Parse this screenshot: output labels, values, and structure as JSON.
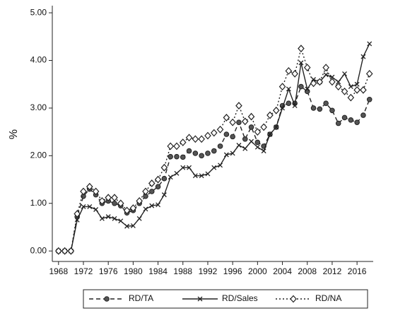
{
  "chart_data": {
    "type": "line",
    "y_label": "%",
    "x": [
      1968,
      1969,
      1970,
      1971,
      1972,
      1973,
      1974,
      1975,
      1976,
      1977,
      1978,
      1979,
      1980,
      1981,
      1982,
      1983,
      1984,
      1985,
      1986,
      1987,
      1988,
      1989,
      1990,
      1991,
      1992,
      1993,
      1994,
      1995,
      1996,
      1997,
      1998,
      1999,
      2000,
      2001,
      2002,
      2003,
      2004,
      2005,
      2006,
      2007,
      2008,
      2009,
      2010,
      2011,
      2012,
      2013,
      2014,
      2015,
      2016,
      2017,
      2018
    ],
    "series": [
      {
        "name": "RD/TA",
        "color": "#222222",
        "line_style": "dashed",
        "marker": "circle",
        "values": [
          0,
          0,
          0,
          0.72,
          1.15,
          1.3,
          1.18,
          1.0,
          1.05,
          1.0,
          0.95,
          0.8,
          0.85,
          1.0,
          1.15,
          1.25,
          1.35,
          1.52,
          1.98,
          1.98,
          1.97,
          2.1,
          2.05,
          2.0,
          2.05,
          2.1,
          2.2,
          2.45,
          2.4,
          2.7,
          2.35,
          2.6,
          2.28,
          2.2,
          2.45,
          2.6,
          3.05,
          3.1,
          3.1,
          3.45,
          3.35,
          3.0,
          2.98,
          3.1,
          2.95,
          2.68,
          2.8,
          2.75,
          2.7,
          2.85,
          3.18
        ]
      },
      {
        "name": "RD/Sales",
        "color": "#222222",
        "line_style": "solid",
        "marker": "x",
        "values": [
          0,
          0,
          0,
          0.65,
          0.93,
          0.93,
          0.87,
          0.68,
          0.72,
          0.68,
          0.63,
          0.52,
          0.53,
          0.68,
          0.88,
          0.95,
          0.97,
          1.18,
          1.55,
          1.63,
          1.75,
          1.75,
          1.58,
          1.58,
          1.62,
          1.75,
          1.8,
          2.02,
          2.05,
          2.22,
          2.15,
          2.3,
          2.18,
          2.1,
          2.45,
          2.6,
          3.0,
          3.4,
          3.05,
          3.95,
          3.4,
          3.6,
          3.55,
          3.7,
          3.65,
          3.55,
          3.72,
          3.45,
          3.5,
          4.08,
          4.35
        ]
      },
      {
        "name": "RD/NA",
        "color": "#222222",
        "line_style": "dotted",
        "marker": "diamond",
        "values": [
          0,
          0,
          0,
          0.78,
          1.25,
          1.35,
          1.25,
          1.05,
          1.12,
          1.12,
          1.0,
          0.85,
          0.9,
          1.05,
          1.25,
          1.42,
          1.5,
          1.75,
          2.2,
          2.2,
          2.28,
          2.38,
          2.35,
          2.35,
          2.42,
          2.48,
          2.55,
          2.8,
          2.7,
          3.05,
          2.72,
          2.82,
          2.5,
          2.6,
          2.85,
          2.95,
          3.45,
          3.78,
          3.72,
          4.25,
          3.85,
          3.52,
          3.55,
          3.85,
          3.55,
          3.45,
          3.35,
          3.22,
          3.38,
          3.38,
          3.72
        ]
      }
    ],
    "xlim": [
      1967,
      2018.6
    ],
    "ylim": [
      -0.22,
      5.15
    ],
    "xticks": [
      1968,
      1972,
      1976,
      1980,
      1984,
      1988,
      1992,
      1996,
      2000,
      2004,
      2008,
      2012,
      2016
    ],
    "yticks": [
      {
        "value": 0,
        "label": "0.00"
      },
      {
        "value": 1,
        "label": "1.00"
      },
      {
        "value": 2,
        "label": "2.00"
      },
      {
        "value": 3,
        "label": "3.00"
      },
      {
        "value": 4,
        "label": "4.00"
      },
      {
        "value": 5,
        "label": "5.00"
      }
    ],
    "grid": false,
    "legend": "bottom"
  }
}
